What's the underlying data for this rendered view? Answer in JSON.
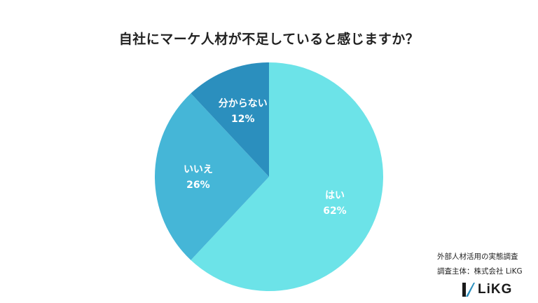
{
  "chart_data": {
    "type": "pie",
    "title": "自社にマーケ人材が不足していると感じますか？",
    "slices": [
      {
        "label": "はい",
        "value": 62,
        "display": "62%",
        "color": "#6ce3e8"
      },
      {
        "label": "いいえ",
        "value": 26,
        "display": "26%",
        "color": "#45b6d7"
      },
      {
        "label": "分からない",
        "value": 12,
        "display": "12%",
        "color": "#2b8fbe"
      }
    ],
    "start": "12 o'clock",
    "direction": "clockwise"
  },
  "footer": {
    "source": "外部人材活用の実態調査",
    "organization": "調査主体：株式会社 LiKG",
    "logo_text": "LiKG"
  }
}
